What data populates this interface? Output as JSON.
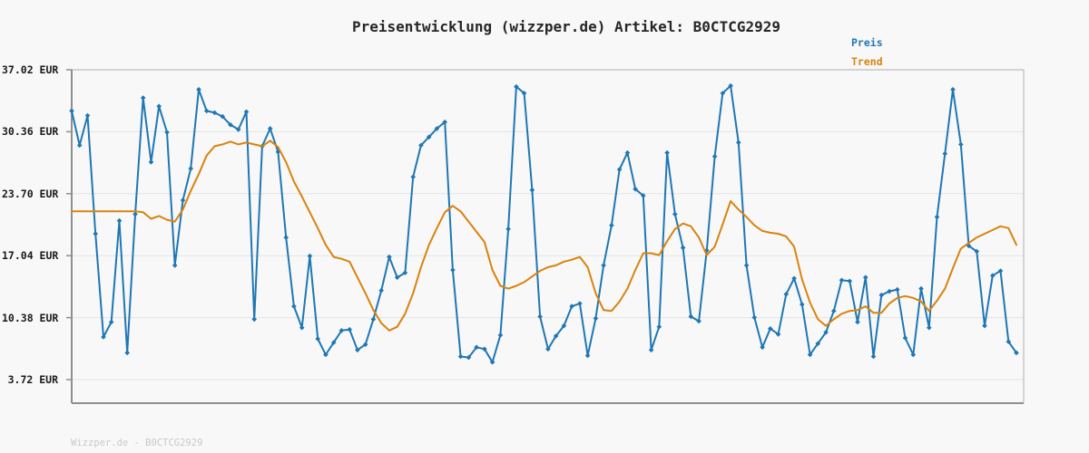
{
  "page": {
    "background_color": "#f8f8f8",
    "watermark": "Wizzper.de - B0CTCG2929"
  },
  "chart_data": {
    "type": "line",
    "title": "Preisentwicklung (wizzper.de) Artikel: B0CTCG2929",
    "xlabel": "",
    "ylabel": "EUR",
    "ylim": [
      3.72,
      37.02
    ],
    "grid": "horizontal",
    "x_axis": {
      "labels_visible": false,
      "n_points": 120
    },
    "y_axis": {
      "tick_values": [
        37.02,
        30.36,
        23.7,
        17.04,
        10.38,
        3.72
      ],
      "tick_labels": [
        "37.02 EUR",
        "30.36 EUR",
        "23.70 EUR",
        "17.04 EUR",
        "10.38 EUR",
        "3.72 EUR"
      ]
    },
    "colors": {
      "grid": "#e4e4e4",
      "axis": "#8f8f8f",
      "axis_light": "#bdbdbd",
      "text": "#262626"
    },
    "legend": {
      "position": "top-right",
      "entries": [
        {
          "label": "Preis",
          "color": "#1f77b4"
        },
        {
          "label": "Trend",
          "color": "#d9830d"
        }
      ]
    },
    "series": [
      {
        "name": "Preis",
        "color": "#1f77b4",
        "marker": "diamond",
        "line_width": 2,
        "values": [
          32.6,
          28.9,
          32.1,
          19.4,
          8.3,
          9.9,
          20.8,
          6.6,
          21.5,
          34.0,
          27.1,
          33.1,
          30.3,
          16.0,
          23.0,
          26.4,
          34.9,
          32.6,
          32.4,
          32.0,
          31.1,
          30.6,
          32.5,
          10.2,
          28.8,
          30.7,
          28.2,
          19.0,
          11.6,
          9.3,
          17.0,
          8.1,
          6.4,
          7.7,
          9.0,
          9.1,
          6.9,
          7.5,
          10.2,
          13.3,
          16.9,
          14.7,
          15.2,
          25.5,
          28.9,
          29.8,
          30.7,
          31.4,
          15.5,
          6.2,
          6.1,
          7.2,
          7.0,
          5.6,
          8.5,
          19.9,
          35.2,
          34.5,
          24.1,
          10.5,
          7.0,
          8.4,
          9.5,
          11.6,
          11.9,
          6.3,
          10.3,
          16.0,
          20.3,
          26.3,
          28.1,
          24.2,
          23.5,
          6.9,
          9.4,
          28.1,
          21.5,
          17.9,
          10.5,
          10.0,
          17.6,
          27.7,
          34.5,
          35.3,
          29.2,
          16.0,
          10.4,
          7.2,
          9.2,
          8.6,
          12.9,
          14.6,
          11.8,
          6.4,
          7.6,
          8.8,
          11.1,
          14.4,
          14.3,
          9.9,
          14.7,
          6.2,
          12.8,
          13.2,
          13.4,
          8.2,
          6.4,
          13.5,
          9.3,
          21.2,
          28.0,
          34.9,
          29.0,
          18.1,
          17.5,
          9.5,
          14.9,
          15.4,
          7.8,
          6.6
        ]
      },
      {
        "name": "Trend",
        "color": "#d9830d",
        "marker": "none",
        "line_width": 2,
        "values": [
          21.8,
          21.8,
          21.8,
          21.8,
          21.8,
          21.8,
          21.8,
          21.8,
          21.8,
          21.7,
          21.0,
          21.3,
          20.9,
          20.7,
          22.0,
          24.0,
          25.8,
          27.8,
          28.8,
          29.0,
          29.3,
          29.0,
          29.2,
          29.0,
          28.8,
          29.4,
          28.7,
          27.1,
          25.0,
          23.4,
          21.7,
          20.0,
          18.2,
          16.9,
          16.7,
          16.4,
          14.7,
          13.0,
          11.2,
          9.8,
          9.0,
          9.4,
          10.8,
          13.0,
          15.8,
          18.2,
          20.0,
          21.7,
          22.4,
          21.8,
          20.7,
          19.6,
          18.5,
          15.5,
          13.8,
          13.5,
          13.8,
          14.2,
          14.8,
          15.4,
          15.8,
          16.0,
          16.4,
          16.6,
          16.9,
          15.8,
          13.0,
          11.2,
          11.1,
          12.1,
          13.5,
          15.5,
          17.3,
          17.3,
          17.1,
          18.6,
          19.9,
          20.5,
          20.2,
          19.0,
          17.1,
          18.0,
          20.4,
          22.9,
          22.0,
          21.2,
          20.3,
          19.7,
          19.5,
          19.4,
          19.1,
          18.0,
          14.5,
          12.0,
          10.2,
          9.5,
          10.2,
          10.8,
          11.1,
          11.2,
          11.6,
          10.9,
          10.9,
          11.9,
          12.5,
          12.7,
          12.5,
          12.1,
          11.1,
          12.2,
          13.5,
          15.7,
          17.8,
          18.4,
          19.0,
          19.4,
          19.8,
          20.2,
          20.0,
          18.2
        ]
      }
    ]
  }
}
